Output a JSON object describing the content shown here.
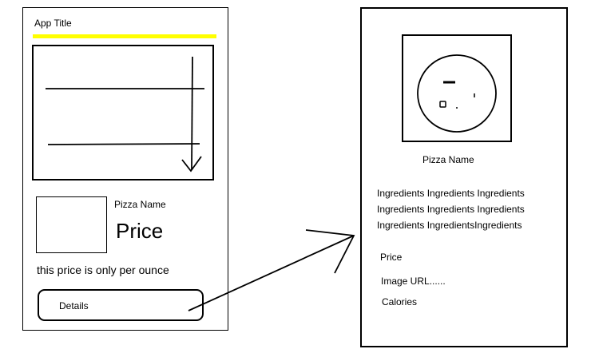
{
  "list_screen": {
    "app_title": "App Title",
    "pizza_name": "Pizza Name",
    "price": "Price",
    "price_note": "this price is only per ounce",
    "details_button": "Details"
  },
  "detail_screen": {
    "pizza_name": "Pizza Name",
    "ingredients": [
      "Ingredients Ingredients Ingredients",
      "Ingredients Ingredients Ingredients",
      "Ingredients IngredientsIngredients"
    ],
    "price": "Price",
    "image_url": "Image URL......",
    "calories": "Calories"
  },
  "colors": {
    "header_bar": "#ffff00",
    "ink": "#000000"
  }
}
